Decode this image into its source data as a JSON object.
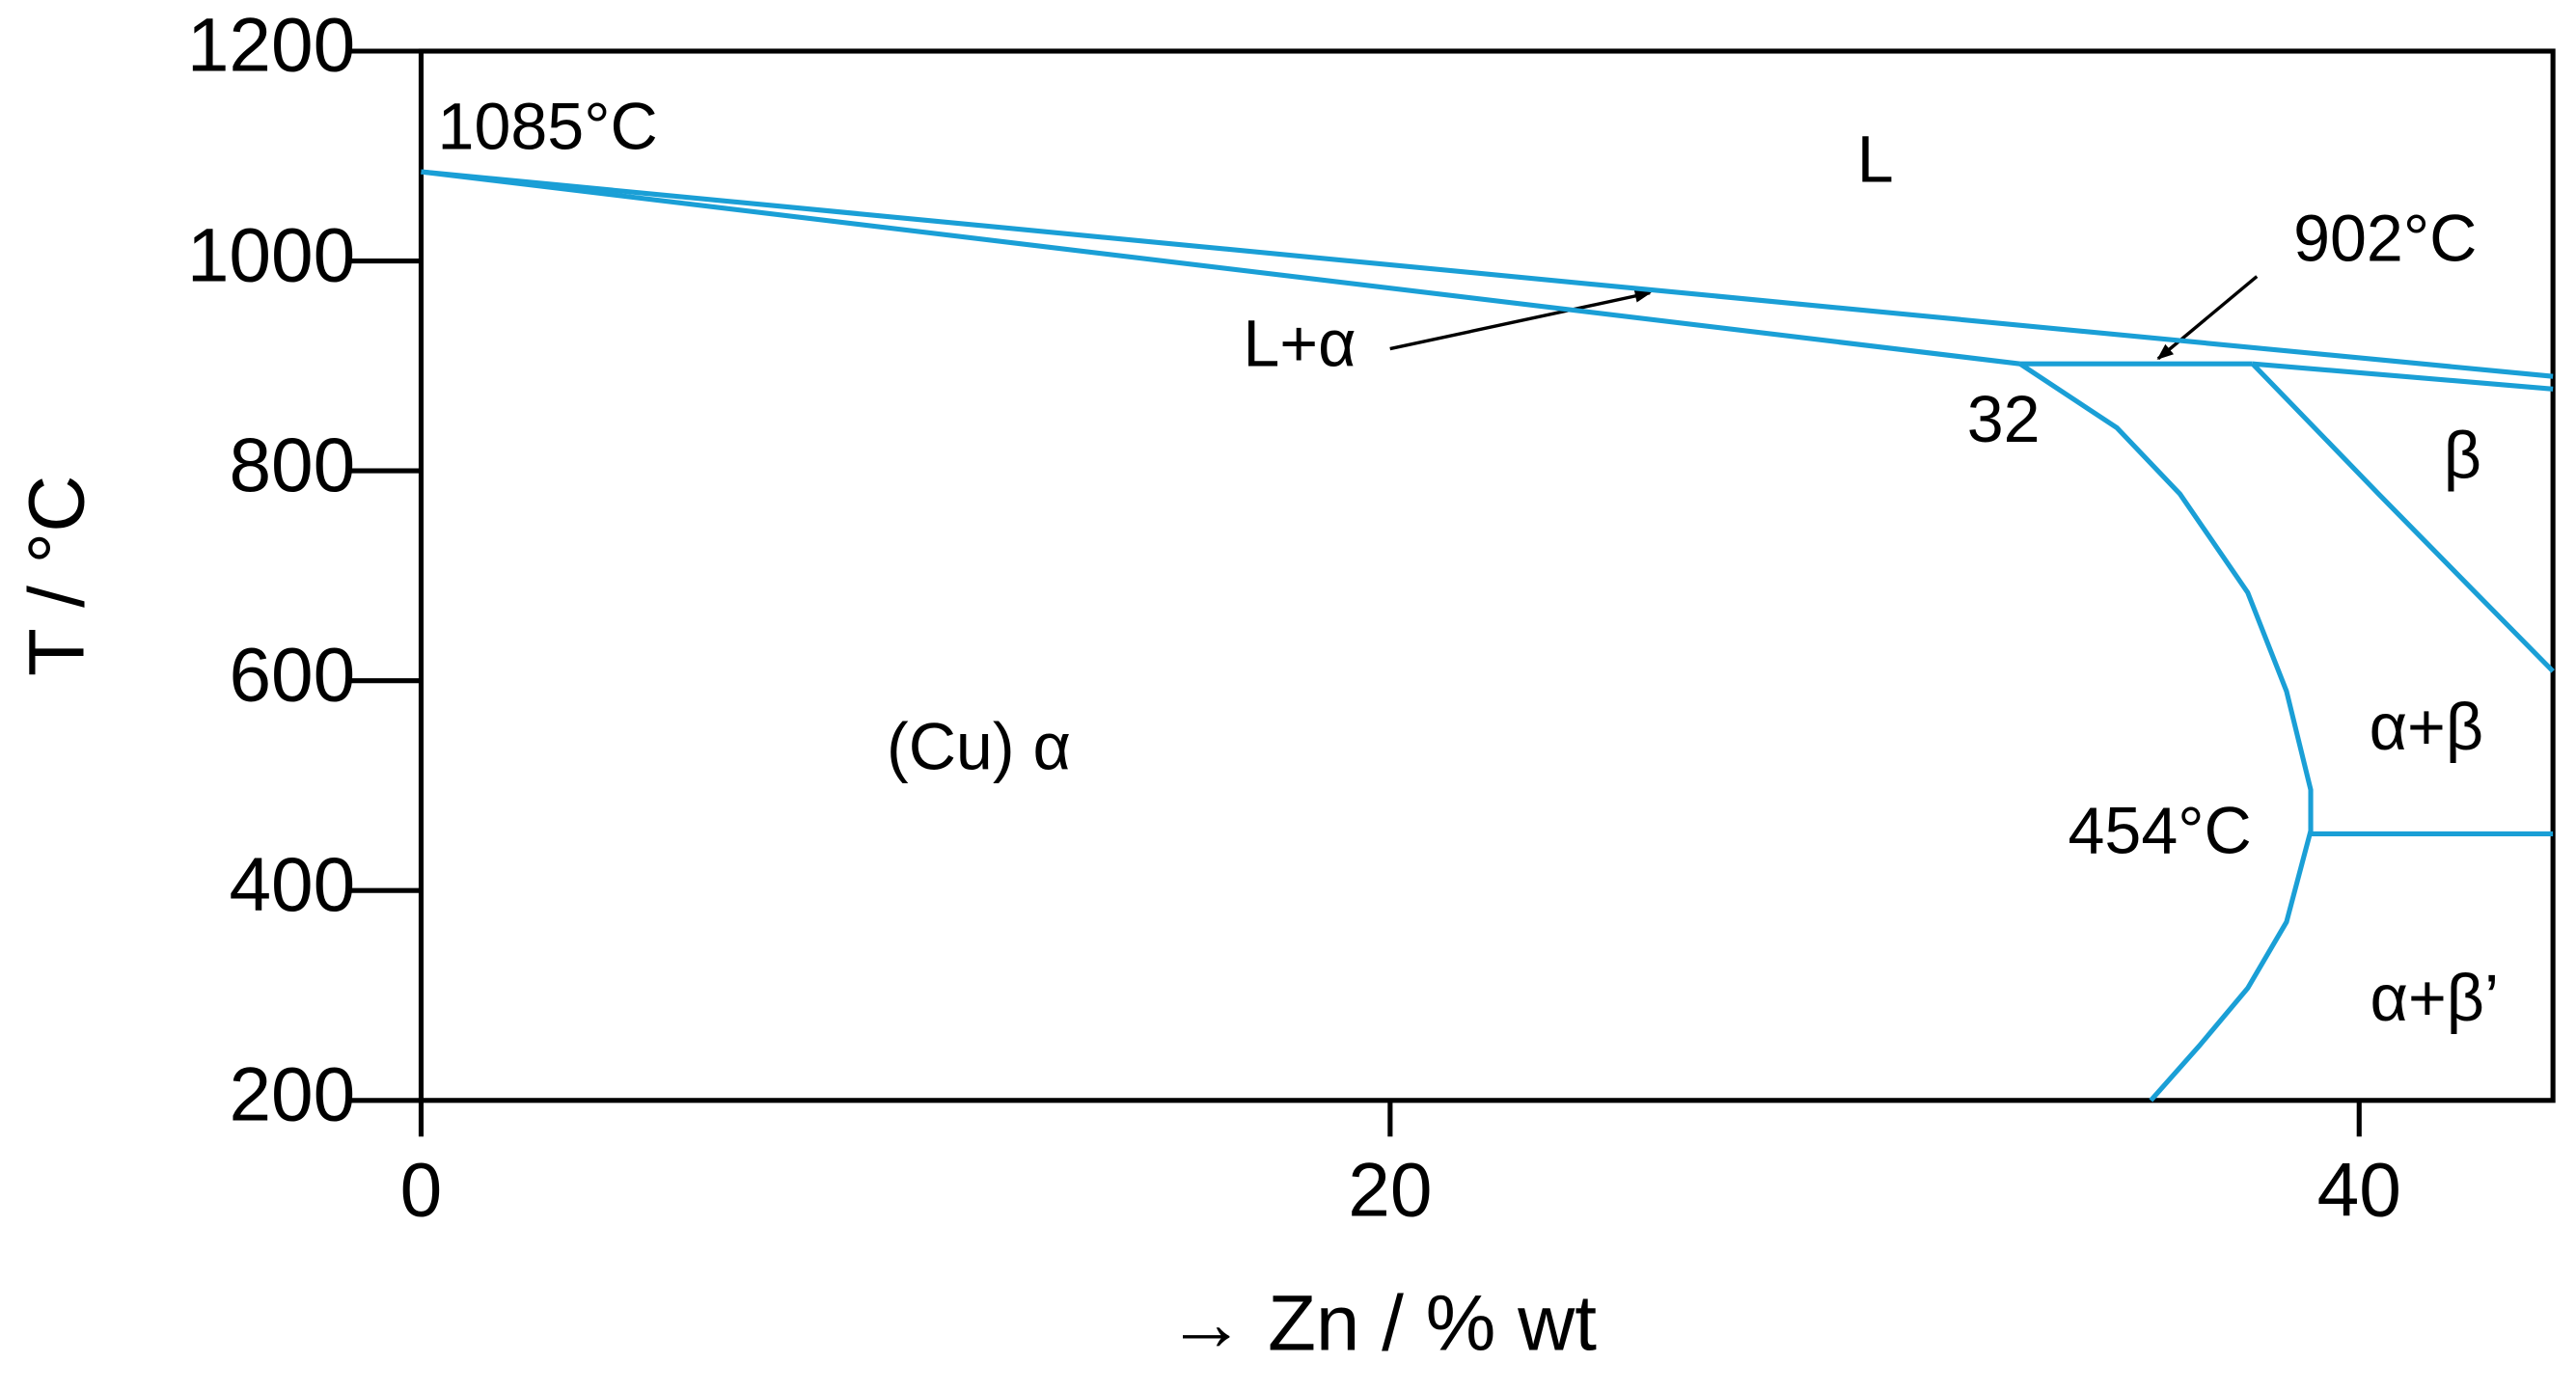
{
  "chart_data": {
    "type": "line",
    "x_label": "→ Zn / % wt",
    "y_label": "T / °C",
    "xlim": [
      0,
      44
    ],
    "ylim": [
      200,
      1200
    ],
    "xticks": [
      0,
      20,
      40
    ],
    "yticks": [
      200,
      400,
      600,
      800,
      1000,
      1200
    ],
    "grid": false,
    "series": [
      {
        "color": "#1a9fd6",
        "x": [
          0,
          44
        ],
        "values": [
          1085,
          890
        ]
      },
      {
        "color": "#1a9fd6",
        "x": [
          0,
          33
        ],
        "values": [
          1085,
          902
        ]
      },
      {
        "color": "#1a9fd6",
        "x": [
          33,
          37.8
        ],
        "values": [
          902,
          902
        ]
      },
      {
        "color": "#1a9fd6",
        "x": [
          37.8,
          44
        ],
        "values": [
          902,
          878
        ]
      },
      {
        "color": "#1a9fd6",
        "x": [
          33,
          35,
          36.3,
          37.7,
          38.5,
          39,
          39,
          38.5,
          37.7,
          36.7,
          35.7
        ],
        "values": [
          902,
          841,
          778,
          684,
          590,
          496,
          457,
          370,
          307,
          252,
          200
        ]
      },
      {
        "color": "#1a9fd6",
        "x": [
          37.8,
          40.4,
          42.4,
          44
        ],
        "values": [
          902,
          778,
          684,
          609
        ]
      },
      {
        "color": "#1a9fd6",
        "x": [
          39,
          44
        ],
        "values": [
          454,
          454
        ]
      }
    ],
    "annotations": [
      "1085°C",
      "L",
      "L+α",
      "902°C",
      "32",
      "β",
      "α+β",
      "(Cu) α",
      "454°C",
      "α+β’"
    ]
  }
}
